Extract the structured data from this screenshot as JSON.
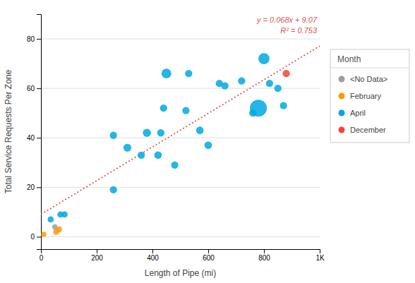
{
  "chart_data": {
    "type": "scatter",
    "xlabel": "Length of Pipe (mi)",
    "ylabel": "Total Service Requests Per Zone",
    "xlim": [
      0,
      1000
    ],
    "ylim": [
      -5,
      90
    ],
    "xticks": [
      0,
      200,
      400,
      600,
      800,
      {
        "value": 1000,
        "label": "1K"
      }
    ],
    "yticks": [
      0,
      20,
      40,
      60,
      80
    ],
    "grid": "y",
    "legend": "right",
    "legend_title": "Month",
    "annotations": [
      "y = 0.068x + 9.07",
      "R² = 0.753"
    ],
    "series": [
      {
        "name": "<No Data>",
        "color": "#9e9e9e",
        "x": [
          50
        ],
        "values": [
          4
        ],
        "sizes": [
          30
        ]
      },
      {
        "name": "February",
        "color": "#ff9800",
        "x": [
          10,
          55,
          65
        ],
        "values": [
          1,
          2,
          3
        ],
        "sizes": [
          30,
          40,
          35
        ]
      },
      {
        "name": "April",
        "color": "#00a8e0",
        "x": [
          35,
          70,
          85,
          260,
          260,
          310,
          360,
          380,
          420,
          430,
          440,
          450,
          480,
          520,
          530,
          570,
          600,
          640,
          660,
          720,
          760,
          780,
          800,
          820,
          850,
          870
        ],
        "values": [
          7,
          9,
          9,
          19,
          41,
          36,
          33,
          42,
          33,
          42,
          52,
          66,
          29,
          51,
          66,
          43,
          37,
          62,
          61,
          63,
          50,
          52,
          72,
          62,
          60,
          53
        ],
        "sizes": [
          40,
          40,
          40,
          55,
          55,
          65,
          55,
          70,
          60,
          55,
          55,
          100,
          55,
          55,
          55,
          60,
          60,
          55,
          55,
          55,
          55,
          300,
          130,
          55,
          55,
          55
        ]
      },
      {
        "name": "December",
        "color": "#f44336",
        "x": [
          880
        ],
        "values": [
          66
        ],
        "sizes": [
          55
        ]
      },
      {
        "type": "line",
        "line_style": "dotted",
        "color": "#e05252",
        "x": [
          0,
          1000
        ],
        "values": [
          9.07,
          77.07
        ]
      }
    ]
  }
}
